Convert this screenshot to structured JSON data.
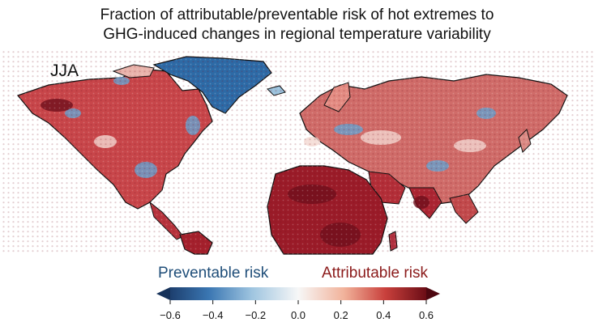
{
  "title_line1": "Fraction of attributable/preventable risk of hot extremes to",
  "title_line2": "GHG-induced changes in regional temperature variability",
  "season": "JJA",
  "colorbar": {
    "label_left": "Preventable risk",
    "label_right": "Attributable risk",
    "min": -0.6,
    "max": 0.6,
    "ticks": [
      "−0.6",
      "−0.4",
      "−0.2",
      "0.0",
      "0.2",
      "0.4",
      "0.6"
    ],
    "extend": "both",
    "colormap": "RdBu_r",
    "colors": {
      "negative_end": "#1d3f6e",
      "neutral": "#f7f7f7",
      "positive_end": "#6b0d16"
    }
  },
  "map": {
    "projection": "equirectangular",
    "regions_dominant": {
      "Greenland": "preventable",
      "Arctic Canada": "mixed",
      "North America": "attributable",
      "South America": "attributable",
      "Africa": "attributable",
      "Europe": "mixed",
      "Northern Eurasia": "mixed",
      "India": "attributable",
      "Middle East": "attributable"
    }
  }
}
